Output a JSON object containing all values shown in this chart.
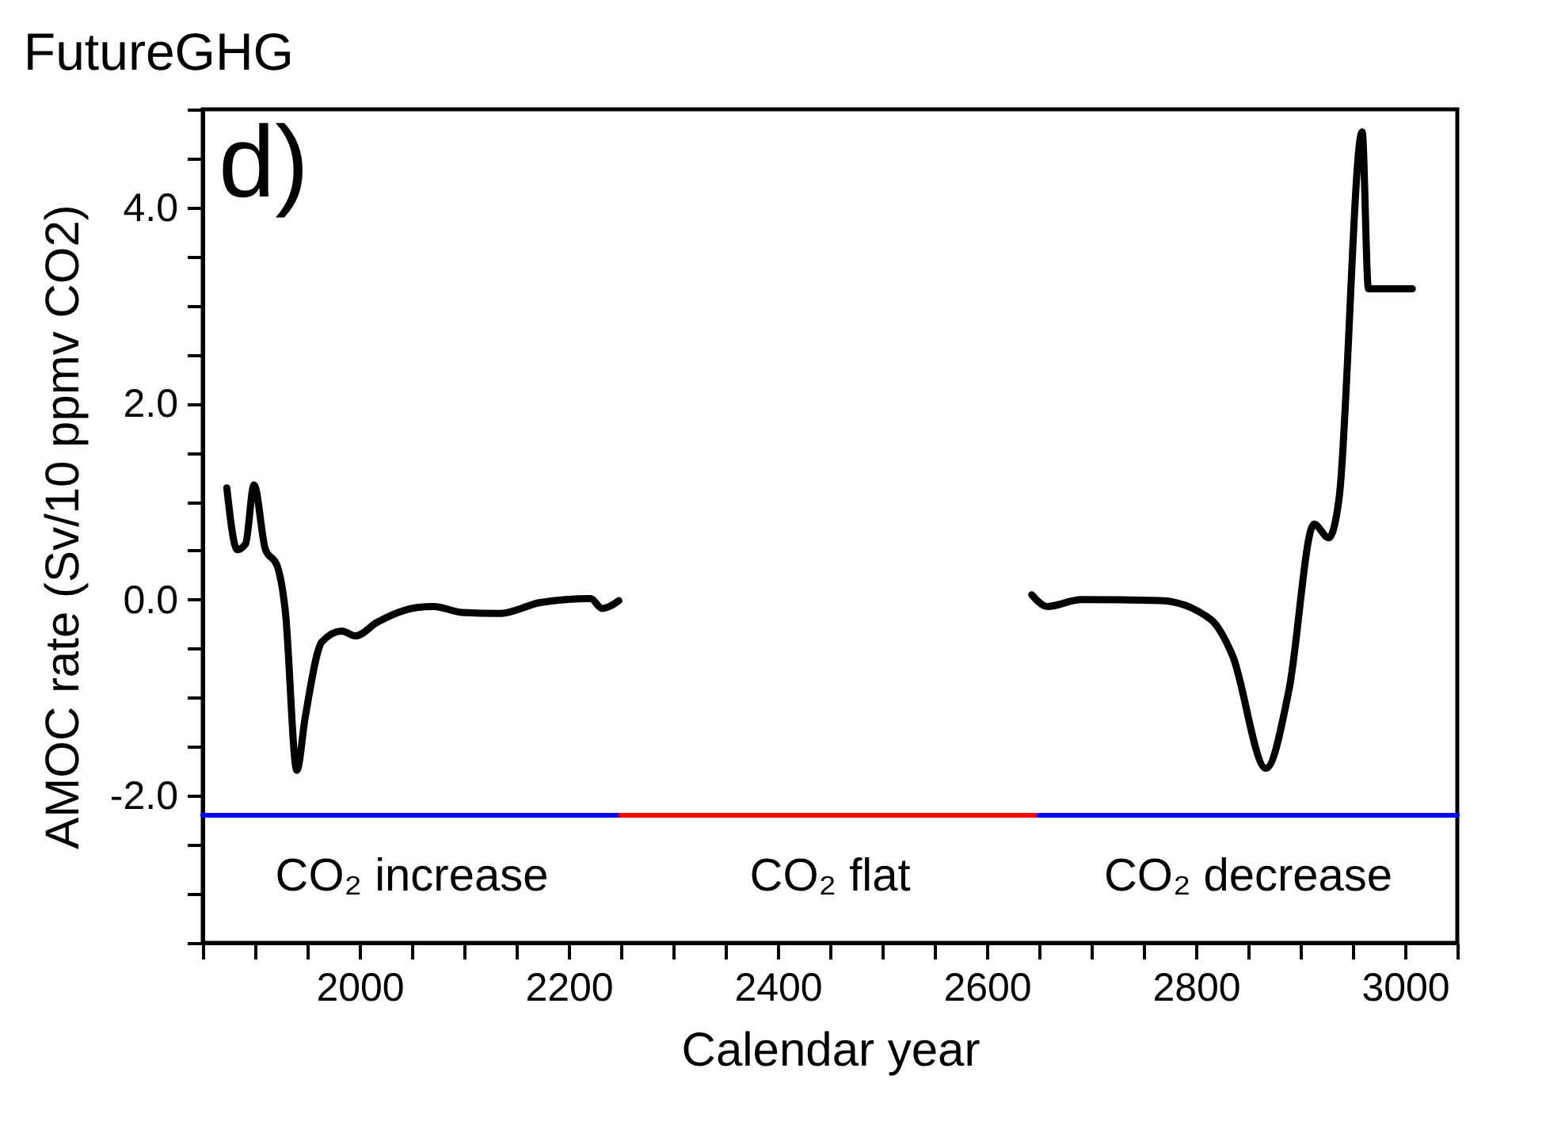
{
  "chart_data": {
    "type": "line",
    "title": "FutureGHG",
    "xlabel": "Calendar year",
    "ylabel": "AMOC rate (Sv/10 ppmv CO2)",
    "xlim": [
      1850,
      3050
    ],
    "ylim": [
      -3.5,
      5.0
    ],
    "xticks": [
      {
        "value": 1850,
        "label": null
      },
      {
        "value": 1900,
        "label": null
      },
      {
        "value": 1950,
        "label": null
      },
      2000,
      {
        "value": 2050,
        "label": null
      },
      {
        "value": 2100,
        "label": null
      },
      {
        "value": 2150,
        "label": null
      },
      2200,
      {
        "value": 2250,
        "label": null
      },
      {
        "value": 2300,
        "label": null
      },
      {
        "value": 2350,
        "label": null
      },
      2400,
      {
        "value": 2450,
        "label": null
      },
      {
        "value": 2500,
        "label": null
      },
      {
        "value": 2550,
        "label": null
      },
      2600,
      {
        "value": 2650,
        "label": null
      },
      {
        "value": 2700,
        "label": null
      },
      {
        "value": 2750,
        "label": null
      },
      2800,
      {
        "value": 2850,
        "label": null
      },
      {
        "value": 2900,
        "label": null
      },
      {
        "value": 2950,
        "label": null
      },
      3000,
      {
        "value": 3050,
        "label": null
      }
    ],
    "yticks": [
      {
        "value": -3.5,
        "label": null
      },
      {
        "value": -3.0,
        "label": null
      },
      {
        "value": -2.5,
        "label": null
      },
      {
        "value": -2.0,
        "label": "-2.0"
      },
      {
        "value": -1.5,
        "label": null
      },
      {
        "value": -1.0,
        "label": null
      },
      {
        "value": -0.5,
        "label": null
      },
      {
        "value": 0.0,
        "label": "0.0"
      },
      {
        "value": 0.5,
        "label": null
      },
      {
        "value": 1.0,
        "label": null
      },
      {
        "value": 1.5,
        "label": null
      },
      {
        "value": 2.0,
        "label": "2.0"
      },
      {
        "value": 2.5,
        "label": null
      },
      {
        "value": 3.0,
        "label": null
      },
      {
        "value": 3.5,
        "label": null
      },
      {
        "value": 4.0,
        "label": "4.0"
      },
      {
        "value": 4.5,
        "label": null
      },
      {
        "value": 5.0,
        "label": null
      }
    ],
    "grid": false,
    "marker": "none",
    "line_style": "solid",
    "series": [
      {
        "color": "#000000",
        "x": [
          1873,
          1883,
          1891,
          1899,
          1910,
          1921,
          1929,
          1940,
          1948,
          1964,
          1983,
          1996,
          2017,
          2055,
          2071,
          2098,
          2135,
          2173,
          2221,
          2232,
          2248
        ],
        "values": [
          1.14,
          0.51,
          0.57,
          1.17,
          0.51,
          0.35,
          -0.12,
          -1.74,
          -1.2,
          -0.43,
          -0.32,
          -0.37,
          -0.23,
          -0.08,
          -0.07,
          -0.13,
          -0.14,
          -0.03,
          0.01,
          -0.09,
          -0.01
        ]
      },
      {
        "color": "#000000",
        "x": [
          2643,
          2658,
          2690,
          2766,
          2814,
          2835,
          2867,
          2889,
          2913,
          2927,
          2937,
          2959,
          2965,
          3007
        ],
        "values": [
          0.05,
          -0.07,
          0.0,
          -0.01,
          -0.2,
          -0.57,
          -1.72,
          -0.92,
          0.77,
          0.63,
          1.04,
          4.77,
          3.17,
          3.17
        ]
      },
      {
        "color": "#0000ff",
        "x": [
          1850,
          2250
        ],
        "values": [
          -2.2,
          -2.2
        ]
      },
      {
        "color": "#ff0000",
        "x": [
          2250,
          2650
        ],
        "values": [
          -2.2,
          -2.2
        ]
      },
      {
        "color": "#0000ff",
        "x": [
          2650,
          3050
        ],
        "values": [
          -2.2,
          -2.2
        ]
      }
    ],
    "annotations": [
      "d)",
      "CO₂ increase",
      "CO₂ flat",
      "CO₂ decrease"
    ]
  }
}
